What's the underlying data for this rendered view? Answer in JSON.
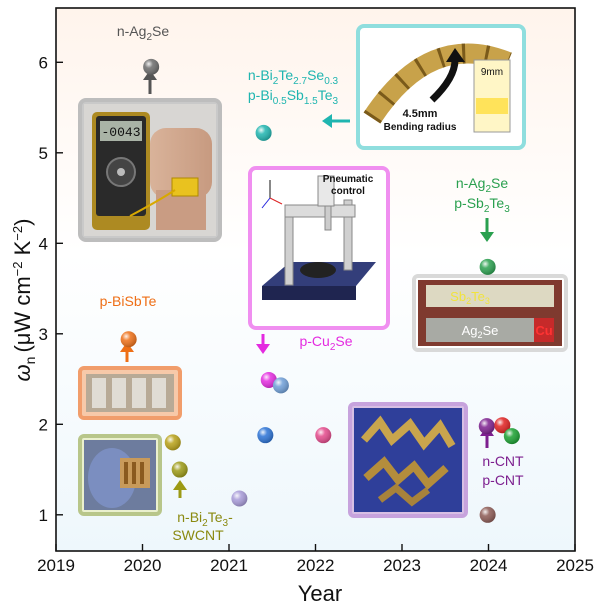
{
  "chart_data": {
    "type": "scatter",
    "xlabel": "Year",
    "ylabel_main": "ω",
    "ylabel_sub": "n",
    "ylabel_units": "(μW cm",
    "ylabel_exp1": "−2",
    "ylabel_mid": " K",
    "ylabel_exp2": "−2",
    "ylabel_end": ")",
    "xlim": [
      2019,
      2025
    ],
    "ylim": [
      0.6,
      6.6
    ],
    "xticks": [
      "2019",
      "2020",
      "2021",
      "2022",
      "2023",
      "2024",
      "2025"
    ],
    "yticks": [
      "1",
      "2",
      "3",
      "4",
      "5",
      "6"
    ],
    "points": [
      {
        "x": 2020.1,
        "y": 5.95,
        "color": "#6b6b6b"
      },
      {
        "x": 2021.4,
        "y": 5.22,
        "color": "#1fb5b0"
      },
      {
        "x": 2023.99,
        "y": 3.74,
        "color": "#2aa04f"
      },
      {
        "x": 2019.84,
        "y": 2.94,
        "color": "#ee6f16"
      },
      {
        "x": 2020.35,
        "y": 1.8,
        "color": "#b8a117"
      },
      {
        "x": 2020.43,
        "y": 1.5,
        "color": "#9c9a14"
      },
      {
        "x": 2021.12,
        "y": 1.18,
        "color": "#a79ad8"
      },
      {
        "x": 2021.46,
        "y": 2.49,
        "color": "#e42be0"
      },
      {
        "x": 2021.6,
        "y": 2.43,
        "color": "#6f9fd8"
      },
      {
        "x": 2021.42,
        "y": 1.88,
        "color": "#2a72d6"
      },
      {
        "x": 2022.09,
        "y": 1.88,
        "color": "#e4498b"
      },
      {
        "x": 2023.98,
        "y": 1.98,
        "color": "#7d1f8f"
      },
      {
        "x": 2024.16,
        "y": 1.99,
        "color": "#e02020"
      },
      {
        "x": 2024.27,
        "y": 1.87,
        "color": "#19a030"
      },
      {
        "x": 2023.99,
        "y": 1.0,
        "color": "#8c5a54"
      }
    ],
    "annotations": {
      "ag2se": {
        "text": "n-Ag",
        "sub": "2",
        "rest": "Se",
        "color": "#555555"
      },
      "bite_a": {
        "t1": "n-Bi",
        "s1": "2",
        "t2": "Te",
        "s2": "2.7",
        "t3": "Se",
        "s3": "0.3",
        "color": "#1fb5b0"
      },
      "bite_b": {
        "t1": "p-Bi",
        "s1": "0.5",
        "t2": "Sb",
        "s2": "1.5",
        "t3": "Te",
        "s3": "3",
        "color": "#1fb5b0"
      },
      "agsb_a": {
        "t1": "n-Ag",
        "s1": "2",
        "t2": "Se",
        "color": "#2aa04f"
      },
      "agsb_b": {
        "t1": "p-Sb",
        "s1": "2",
        "t2": "Te",
        "s2": "3",
        "color": "#2aa04f"
      },
      "bisbte": {
        "text": "p-BiSbTe",
        "color": "#ee6f16"
      },
      "cu2se": {
        "t1": "p-Cu",
        "s1": "2",
        "t2": "Se",
        "color": "#e42be0"
      },
      "bi2te3_a": {
        "t1": "n-Bi",
        "s1": "2",
        "t2": "Te",
        "s2": "3",
        "t3": "-",
        "color": "#8a8a10"
      },
      "bi2te3_b": {
        "text": "SWCNT",
        "color": "#8a8a10"
      },
      "cnt_a": {
        "text": "n-CNT",
        "color": "#7d1f8f"
      },
      "cnt_b": {
        "text": "p-CNT",
        "color": "#7d1f8f"
      }
    },
    "insets": {
      "multimeter_display": "-0043",
      "bending_label_1": "4.5mm",
      "bending_label_2": "Bending radius",
      "bending_ruler": "9mm",
      "pneumatic_1": "Pneumatic",
      "pneumatic_2": "control",
      "film_top": "Sb",
      "film_top_sub": "2",
      "film_top_rest": "Te",
      "film_top_sub2": "3",
      "film_bottom": "Ag",
      "film_bottom_sub": "2",
      "film_bottom_rest": "Se",
      "film_cu": "Cu"
    }
  }
}
